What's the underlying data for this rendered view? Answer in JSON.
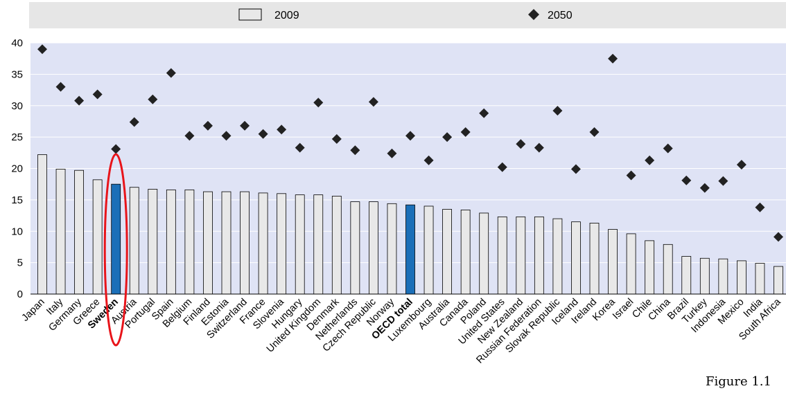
{
  "colors": {
    "bar_default": "#e8e8e8",
    "bar_highlight": "#1b6fb8",
    "marker": "#222222",
    "plot_background": "#dfe3f5",
    "legend_background": "#e6e6e6",
    "annotation": "#e8141a"
  },
  "legend": {
    "series_2009": "2009",
    "series_2050": "2050"
  },
  "figure_label": "Figure 1.1",
  "chart_data": {
    "type": "bar",
    "ylim": [
      0,
      40
    ],
    "yticks": [
      0,
      5,
      10,
      15,
      20,
      25,
      30,
      35,
      40
    ],
    "grid": true,
    "legend_position": "top",
    "categories": [
      "Japan",
      "Italy",
      "Germany",
      "Greece",
      "Sweden",
      "Austria",
      "Portugal",
      "Spain",
      "Belgium",
      "Finland",
      "Estonia",
      "Switzerland",
      "France",
      "Slovenia",
      "Hungary",
      "United Kingdom",
      "Denmark",
      "Netherlands",
      "Czech Republic",
      "Norway",
      "OECD total",
      "Luxembourg",
      "Australia",
      "Canada",
      "Poland",
      "United States",
      "New Zealand",
      "Russian Federation",
      "Slovak Republic",
      "Iceland",
      "Ireland",
      "Korea",
      "Israel",
      "Chile",
      "China",
      "Brazil",
      "Turkey",
      "Indonesia",
      "Mexico",
      "India",
      "South Africa"
    ],
    "highlighted_categories": [
      "Sweden",
      "OECD total"
    ],
    "bold_categories": [
      "Sweden",
      "OECD total"
    ],
    "circled_category": "Sweden",
    "series": [
      {
        "name": "2009",
        "type": "bar",
        "values": [
          22.2,
          19.9,
          19.7,
          18.2,
          17.5,
          17.0,
          16.7,
          16.6,
          16.6,
          16.3,
          16.3,
          16.3,
          16.1,
          16.0,
          15.8,
          15.8,
          15.6,
          14.7,
          14.7,
          14.4,
          14.2,
          14.0,
          13.5,
          13.4,
          12.9,
          12.3,
          12.3,
          12.3,
          12.0,
          11.5,
          11.3,
          10.3,
          9.6,
          8.5,
          7.9,
          6.0,
          5.7,
          5.6,
          5.3,
          4.9,
          4.4
        ]
      },
      {
        "name": "2050",
        "type": "scatter",
        "values": [
          39.0,
          33.0,
          30.8,
          31.8,
          23.1,
          27.4,
          31.0,
          35.2,
          25.2,
          26.8,
          25.2,
          26.8,
          25.5,
          26.2,
          23.3,
          30.5,
          24.7,
          22.9,
          30.6,
          22.4,
          25.2,
          21.3,
          25.0,
          25.8,
          28.8,
          20.2,
          23.9,
          23.3,
          29.2,
          19.9,
          25.8,
          37.5,
          18.9,
          21.3,
          23.2,
          18.1,
          16.9,
          18.0,
          20.6,
          13.8,
          9.1
        ]
      }
    ]
  }
}
